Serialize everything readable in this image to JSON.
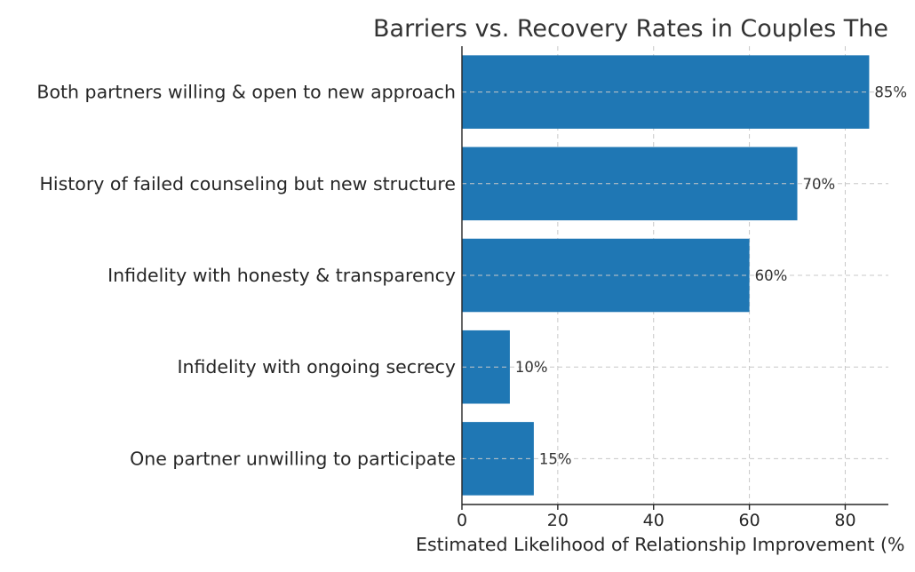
{
  "chart_data": {
    "type": "bar",
    "orientation": "horizontal",
    "title": "Barriers vs. Recovery Rates in Couples The",
    "xlabel": "Estimated Likelihood of Relationship Improvement (%",
    "ylabel": "",
    "categories": [
      "Both partners willing & open to new approach",
      "History of failed counseling but new structure",
      "Infidelity with honesty & transparency",
      "Infidelity with ongoing secrecy",
      "One partner unwilling to participate"
    ],
    "values": [
      85,
      70,
      60,
      10,
      15
    ],
    "data_labels": [
      "85%",
      "70%",
      "60%",
      "10%",
      "15%"
    ],
    "xlim": [
      0,
      89
    ],
    "xticks": [
      0,
      20,
      40,
      60,
      80
    ],
    "xtick_labels": [
      "0",
      "20",
      "40",
      "60",
      "80"
    ],
    "grid": true,
    "bar_color": "#1f77b4"
  }
}
